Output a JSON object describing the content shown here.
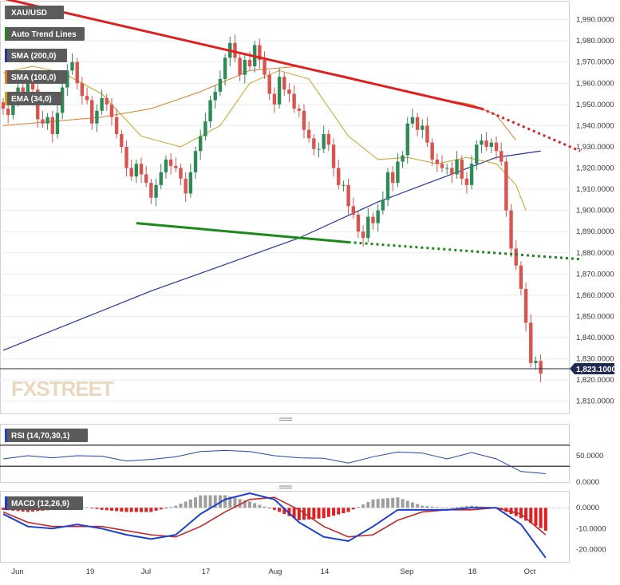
{
  "legend": {
    "symbol": "XAU/USD",
    "trend_lines": "Auto Trend Lines",
    "sma200": "SMA (200,0)",
    "sma100": "SMA (100,0)",
    "ema34": "EMA (34,0)",
    "rsi": "RSI (14,70,30,1)",
    "macd": "MACD (12,26,9)"
  },
  "watermark": "FXSTREET",
  "last_price_label": "1,823.1000",
  "colors": {
    "bull": "#2e8b57",
    "bear": "#d9534f",
    "sma200": "#2233aa",
    "sma100": "#e07b2a",
    "ema34": "#c9a227",
    "resistance": "#e02020",
    "support": "#1a8a1a",
    "rsi": "#2244bb",
    "macd_line": "#1a3fd4",
    "signal_line": "#c62828",
    "hist_pos": "#9e9e9e",
    "hist_neg": "#e02020"
  },
  "chart_data": [
    {
      "type": "candlestick",
      "title": "XAU/USD",
      "ylim": [
        1805,
        1997
      ],
      "y_ticks": [
        "1,990.0000",
        "1,980.0000",
        "1,970.0000",
        "1,960.0000",
        "1,950.0000",
        "1,940.0000",
        "1,930.0000",
        "1,920.0000",
        "1,910.0000",
        "1,900.0000",
        "1,890.0000",
        "1,880.0000",
        "1,870.0000",
        "1,860.0000",
        "1,850.0000",
        "1,840.0000",
        "1,830.0000",
        "1,820.0000",
        "1,810.0000"
      ],
      "x_tick_labels": [
        "Jun",
        "19",
        "Jul",
        "17",
        "Aug",
        "14",
        "Sep",
        "18",
        "Oct"
      ],
      "close": [
        1948,
        1945,
        1952,
        1958,
        1955,
        1962,
        1957,
        1943,
        1941,
        1944,
        1936,
        1946,
        1958,
        1966,
        1970,
        1960,
        1954,
        1952,
        1941,
        1947,
        1953,
        1950,
        1944,
        1936,
        1930,
        1920,
        1916,
        1922,
        1917,
        1913,
        1906,
        1912,
        1918,
        1924,
        1921,
        1920,
        1915,
        1908,
        1918,
        1928,
        1935,
        1942,
        1952,
        1956,
        1962,
        1972,
        1979,
        1972,
        1964,
        1971,
        1968,
        1978,
        1971,
        1964,
        1955,
        1950,
        1963,
        1957,
        1955,
        1948,
        1947,
        1938,
        1934,
        1929,
        1929,
        1936,
        1931,
        1920,
        1912,
        1912,
        1902,
        1898,
        1890,
        1887,
        1897,
        1894,
        1900,
        1905,
        1918,
        1913,
        1923,
        1926,
        1941,
        1944,
        1938,
        1940,
        1932,
        1924,
        1922,
        1920,
        1920,
        1917,
        1924,
        1915,
        1912,
        1922,
        1931,
        1933,
        1930,
        1932,
        1928,
        1923,
        1900,
        1882,
        1874,
        1863,
        1847,
        1828,
        1829,
        1823
      ],
      "open": [
        1951,
        1948,
        1945,
        1952,
        1958,
        1955,
        1962,
        1957,
        1943,
        1941,
        1944,
        1936,
        1946,
        1958,
        1966,
        1970,
        1960,
        1954,
        1952,
        1941,
        1947,
        1953,
        1950,
        1944,
        1936,
        1930,
        1920,
        1916,
        1922,
        1917,
        1913,
        1906,
        1912,
        1918,
        1924,
        1921,
        1920,
        1915,
        1908,
        1918,
        1928,
        1935,
        1942,
        1952,
        1956,
        1962,
        1972,
        1979,
        1972,
        1964,
        1971,
        1968,
        1978,
        1971,
        1964,
        1955,
        1950,
        1963,
        1957,
        1955,
        1948,
        1947,
        1938,
        1934,
        1929,
        1929,
        1936,
        1931,
        1920,
        1912,
        1912,
        1902,
        1898,
        1890,
        1887,
        1897,
        1894,
        1900,
        1905,
        1918,
        1913,
        1923,
        1926,
        1941,
        1944,
        1938,
        1940,
        1932,
        1924,
        1922,
        1920,
        1920,
        1917,
        1924,
        1915,
        1912,
        1922,
        1931,
        1933,
        1930,
        1932,
        1928,
        1923,
        1900,
        1882,
        1874,
        1863,
        1847,
        1828,
        1829
      ],
      "sma200": {
        "x": [
          0,
          30,
          60,
          76,
          92,
          100,
          109
        ],
        "y": [
          1834,
          1862,
          1887,
          1904,
          1918,
          1925,
          1928
        ]
      },
      "sma100": {
        "x": [
          0,
          10,
          20,
          30,
          40,
          50,
          60,
          70,
          80,
          90,
          95,
          100,
          104
        ],
        "y": [
          1940,
          1942,
          1944,
          1948,
          1956,
          1966,
          1968,
          1963,
          1957,
          1952,
          1950,
          1945,
          1933
        ]
      },
      "ema34": {
        "x": [
          0,
          6,
          12,
          20,
          28,
          36,
          44,
          50,
          56,
          62,
          70,
          76,
          82,
          88,
          94,
          100,
          104,
          106
        ],
        "y": [
          1965,
          1968,
          1965,
          1955,
          1935,
          1930,
          1940,
          1960,
          1966,
          1962,
          1935,
          1924,
          1925,
          1922,
          1925,
          1922,
          1912,
          1900
        ]
      },
      "resistance_solid": {
        "x": [
          0,
          97
        ],
        "y": [
          2000,
          1948
        ]
      },
      "resistance_dotted": {
        "x": [
          97,
          117
        ],
        "y": [
          1948,
          1928
        ]
      },
      "support_solid": {
        "x": [
          27,
          70
        ],
        "y": [
          1894,
          1885
        ]
      },
      "support_dotted": {
        "x": [
          70,
          117
        ],
        "y": [
          1885,
          1877
        ]
      }
    },
    {
      "type": "line",
      "title": "RSI (14,70,30,1)",
      "ylim": [
        0,
        100
      ],
      "y_ticks": [
        "50.0000",
        "0.0000"
      ],
      "x": [
        0,
        5,
        10,
        15,
        20,
        25,
        30,
        35,
        40,
        45,
        50,
        55,
        60,
        65,
        70,
        75,
        80,
        85,
        90,
        95,
        100,
        105,
        110
      ],
      "values": [
        44,
        50,
        46,
        50,
        49,
        40,
        43,
        48,
        58,
        60,
        58,
        50,
        46,
        45,
        36,
        48,
        57,
        55,
        44,
        56,
        44,
        20,
        16
      ]
    },
    {
      "type": "line",
      "title": "MACD (12,26,9)",
      "ylim": [
        -26,
        7
      ],
      "y_ticks": [
        "0.0000",
        "-10.0000",
        "-20.0000"
      ],
      "macd": {
        "x": [
          0,
          5,
          10,
          15,
          20,
          25,
          30,
          35,
          40,
          45,
          50,
          55,
          60,
          65,
          70,
          75,
          80,
          85,
          90,
          95,
          100,
          105,
          110
        ],
        "y": [
          -3,
          -9,
          -10,
          -8,
          -10,
          -13,
          -15,
          -13,
          -3,
          4,
          7,
          4,
          -7,
          -14,
          -16,
          -9,
          -1,
          -1,
          -1,
          0,
          0,
          -8,
          -24
        ]
      },
      "signal": {
        "x": [
          0,
          5,
          10,
          15,
          20,
          25,
          30,
          35,
          40,
          45,
          50,
          55,
          60,
          65,
          70,
          75,
          80,
          85,
          90,
          95,
          100,
          105,
          110
        ],
        "y": [
          -2,
          -7,
          -9,
          -9,
          -9,
          -11,
          -13,
          -14,
          -9,
          -2,
          4,
          5,
          -1,
          -9,
          -14,
          -13,
          -6,
          -2,
          -1,
          -1,
          0,
          -3,
          -13
        ]
      }
    }
  ]
}
